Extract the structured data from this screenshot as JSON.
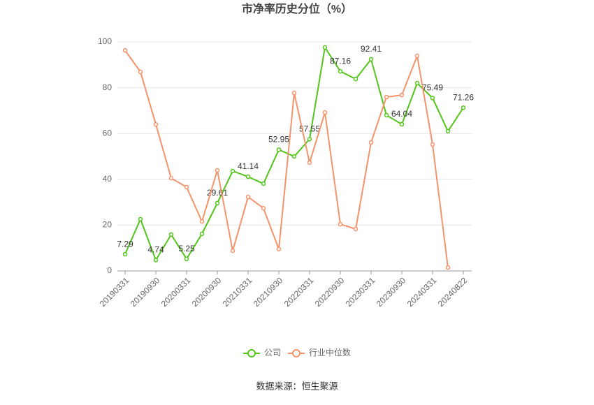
{
  "chart_data": {
    "type": "line",
    "title": "市净率历史分位（%）",
    "categories": [
      "20190331",
      null,
      "20190930",
      null,
      "20200331",
      null,
      "20200930",
      null,
      "20210331",
      null,
      "20210930",
      null,
      "20220331",
      null,
      "20220930",
      null,
      "20230331",
      null,
      "20230930",
      null,
      "20240331",
      null,
      "20240822"
    ],
    "series": [
      {
        "name": "公司",
        "color": "#52c41a",
        "values": [
          7.29,
          22.6,
          4.74,
          15.9,
          5.25,
          16.2,
          29.61,
          43.6,
          41.14,
          38.1,
          52.95,
          50,
          57.55,
          97.6,
          87.16,
          83.8,
          92.41,
          68,
          64.04,
          82,
          75.49,
          61,
          71.26
        ],
        "value_labels": [
          "7.29",
          null,
          "4.74",
          null,
          "5.25",
          null,
          "29.61",
          null,
          "41.14",
          null,
          "52.95",
          null,
          "57.55",
          null,
          "87.16",
          null,
          "92.41",
          null,
          "64.04",
          null,
          "75.49",
          null,
          "71.26"
        ]
      },
      {
        "name": "行业中位数",
        "color": "#f4936b",
        "values": [
          96.3,
          86.9,
          64,
          40.5,
          36.6,
          21.6,
          43.9,
          8.8,
          32.3,
          27.4,
          9.5,
          77.7,
          47.3,
          69.2,
          20.4,
          18.3,
          56.1,
          75.9,
          76.8,
          93.9,
          55.2,
          1.5,
          null
        ]
      }
    ],
    "ylim": [
      0,
      100
    ],
    "yticks": [
      0,
      20,
      40,
      60,
      80,
      100
    ],
    "grid": true,
    "source": "数据来源：恒生聚源"
  }
}
